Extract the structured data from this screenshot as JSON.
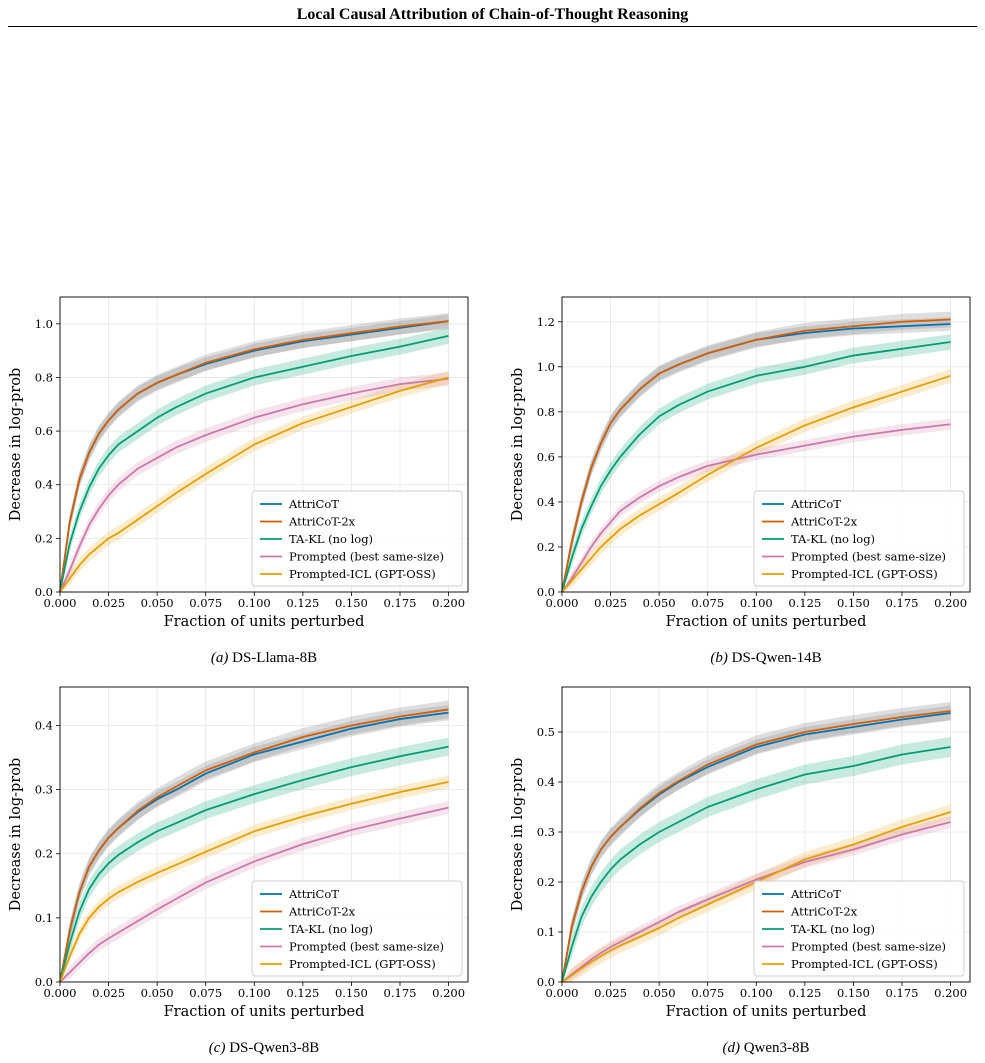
{
  "header": {
    "title": "Local Causal Attribution of Chain-of-Thought Reasoning"
  },
  "colors": {
    "AttriCoT": "#0072B2",
    "AttriCoT-2x": "#D55E00",
    "TA-KL (no log)": "#009E73",
    "Prompted (best same-size)": "#CC79A7",
    "Prompted-ICL (GPT-OSS)": "#E69F00",
    "overlap_band": "#8a8a8a"
  },
  "chart_data": [
    {
      "type": "line",
      "panel_label": "(a)",
      "caption": "DS-Llama-8B",
      "xlabel": "Fraction of units perturbed",
      "ylabel": "Decrease in log-prob",
      "xlim": [
        0,
        0.21
      ],
      "ylim": [
        0,
        1.1
      ],
      "xticks": [
        "0.000",
        "0.025",
        "0.050",
        "0.075",
        "0.100",
        "0.125",
        "0.150",
        "0.175",
        "0.200"
      ],
      "yticks": [
        "0.0",
        "0.2",
        "0.4",
        "0.6",
        "0.8",
        "1.0"
      ],
      "grid": true,
      "legend_position": "lower-right",
      "x": [
        0,
        0.005,
        0.01,
        0.015,
        0.02,
        0.025,
        0.03,
        0.04,
        0.05,
        0.06,
        0.075,
        0.1,
        0.125,
        0.15,
        0.175,
        0.2
      ],
      "series": [
        {
          "name": "AttriCoT",
          "values": [
            0,
            0.26,
            0.42,
            0.52,
            0.59,
            0.64,
            0.68,
            0.74,
            0.78,
            0.81,
            0.85,
            0.9,
            0.935,
            0.96,
            0.985,
            1.01
          ],
          "band": 0.025
        },
        {
          "name": "AttriCoT-2x",
          "values": [
            0,
            0.26,
            0.42,
            0.52,
            0.59,
            0.64,
            0.68,
            0.74,
            0.78,
            0.81,
            0.855,
            0.905,
            0.94,
            0.965,
            0.99,
            1.01
          ],
          "band": 0.03
        },
        {
          "name": "TA-KL (no log)",
          "values": [
            0,
            0.18,
            0.3,
            0.39,
            0.46,
            0.51,
            0.55,
            0.6,
            0.65,
            0.69,
            0.74,
            0.8,
            0.84,
            0.88,
            0.915,
            0.955
          ],
          "band": 0.03
        },
        {
          "name": "Prompted (best same-size)",
          "values": [
            0,
            0.08,
            0.17,
            0.25,
            0.31,
            0.36,
            0.4,
            0.46,
            0.5,
            0.54,
            0.585,
            0.65,
            0.7,
            0.74,
            0.775,
            0.795
          ],
          "band": 0.025
        },
        {
          "name": "Prompted-ICL (GPT-OSS)",
          "values": [
            0,
            0.05,
            0.1,
            0.14,
            0.17,
            0.2,
            0.22,
            0.27,
            0.32,
            0.37,
            0.44,
            0.55,
            0.63,
            0.69,
            0.75,
            0.8
          ],
          "band": 0.025
        }
      ]
    },
    {
      "type": "line",
      "panel_label": "(b)",
      "caption": "DS-Qwen-14B",
      "xlabel": "Fraction of units perturbed",
      "ylabel": "Decrease in log-prob",
      "xlim": [
        0,
        0.21
      ],
      "ylim": [
        0,
        1.31
      ],
      "xticks": [
        "0.000",
        "0.025",
        "0.050",
        "0.075",
        "0.100",
        "0.125",
        "0.150",
        "0.175",
        "0.200"
      ],
      "yticks": [
        "0.0",
        "0.2",
        "0.4",
        "0.6",
        "0.8",
        "1.0",
        "1.2"
      ],
      "grid": true,
      "legend_position": "lower-right",
      "x": [
        0,
        0.005,
        0.01,
        0.015,
        0.02,
        0.025,
        0.03,
        0.04,
        0.05,
        0.06,
        0.075,
        0.1,
        0.125,
        0.15,
        0.175,
        0.2
      ],
      "series": [
        {
          "name": "AttriCoT",
          "values": [
            0,
            0.22,
            0.4,
            0.55,
            0.66,
            0.75,
            0.81,
            0.9,
            0.97,
            1.01,
            1.06,
            1.12,
            1.15,
            1.17,
            1.18,
            1.19
          ],
          "band": 0.03
        },
        {
          "name": "AttriCoT-2x",
          "values": [
            0,
            0.22,
            0.4,
            0.55,
            0.66,
            0.75,
            0.81,
            0.9,
            0.97,
            1.01,
            1.06,
            1.12,
            1.16,
            1.18,
            1.2,
            1.21
          ],
          "band": 0.035
        },
        {
          "name": "TA-KL (no log)",
          "values": [
            0,
            0.15,
            0.28,
            0.38,
            0.47,
            0.54,
            0.6,
            0.7,
            0.78,
            0.83,
            0.89,
            0.96,
            1.0,
            1.05,
            1.08,
            1.11
          ],
          "band": 0.035
        },
        {
          "name": "Prompted (best same-size)",
          "values": [
            0,
            0.06,
            0.13,
            0.2,
            0.26,
            0.31,
            0.36,
            0.42,
            0.47,
            0.51,
            0.56,
            0.61,
            0.65,
            0.69,
            0.72,
            0.745
          ],
          "band": 0.025
        },
        {
          "name": "Prompted-ICL (GPT-OSS)",
          "values": [
            0,
            0.05,
            0.1,
            0.15,
            0.2,
            0.24,
            0.28,
            0.34,
            0.39,
            0.44,
            0.52,
            0.64,
            0.74,
            0.82,
            0.89,
            0.96
          ],
          "band": 0.03
        }
      ]
    },
    {
      "type": "line",
      "panel_label": "(c)",
      "caption": "DS-Qwen3-8B",
      "xlabel": "Fraction of units perturbed",
      "ylabel": "Decrease in log-prob",
      "xlim": [
        0,
        0.21
      ],
      "ylim": [
        0,
        0.46
      ],
      "xticks": [
        "0.000",
        "0.025",
        "0.050",
        "0.075",
        "0.100",
        "0.125",
        "0.150",
        "0.175",
        "0.200"
      ],
      "yticks": [
        "0.0",
        "0.1",
        "0.2",
        "0.3",
        "0.4"
      ],
      "grid": true,
      "legend_position": "lower-right",
      "x": [
        0,
        0.005,
        0.01,
        0.015,
        0.02,
        0.025,
        0.03,
        0.04,
        0.05,
        0.06,
        0.075,
        0.1,
        0.125,
        0.15,
        0.175,
        0.2
      ],
      "series": [
        {
          "name": "AttriCoT",
          "values": [
            0,
            0.08,
            0.14,
            0.18,
            0.205,
            0.225,
            0.24,
            0.265,
            0.285,
            0.3,
            0.325,
            0.355,
            0.375,
            0.395,
            0.41,
            0.42
          ],
          "band": 0.012
        },
        {
          "name": "AttriCoT-2x",
          "values": [
            0,
            0.08,
            0.14,
            0.18,
            0.205,
            0.225,
            0.24,
            0.267,
            0.288,
            0.305,
            0.33,
            0.358,
            0.382,
            0.4,
            0.414,
            0.425
          ],
          "band": 0.014
        },
        {
          "name": "TA-KL (no log)",
          "values": [
            0,
            0.06,
            0.11,
            0.145,
            0.168,
            0.185,
            0.198,
            0.218,
            0.235,
            0.248,
            0.268,
            0.293,
            0.315,
            0.335,
            0.352,
            0.367
          ],
          "band": 0.014
        },
        {
          "name": "Prompted (best same-size)",
          "values": [
            0,
            0.015,
            0.03,
            0.045,
            0.058,
            0.068,
            0.077,
            0.095,
            0.113,
            0.13,
            0.155,
            0.188,
            0.215,
            0.237,
            0.255,
            0.272
          ],
          "band": 0.01
        },
        {
          "name": "Prompted-ICL (GPT-OSS)",
          "values": [
            0,
            0.04,
            0.075,
            0.1,
            0.117,
            0.13,
            0.14,
            0.156,
            0.17,
            0.183,
            0.203,
            0.235,
            0.258,
            0.278,
            0.296,
            0.312
          ],
          "band": 0.01
        }
      ]
    },
    {
      "type": "line",
      "panel_label": "(d)",
      "caption": "Qwen3-8B",
      "xlabel": "Fraction of units perturbed",
      "ylabel": "Decrease in log-prob",
      "xlim": [
        0,
        0.21
      ],
      "ylim": [
        0,
        0.59
      ],
      "xticks": [
        "0.000",
        "0.025",
        "0.050",
        "0.075",
        "0.100",
        "0.125",
        "0.150",
        "0.175",
        "0.200"
      ],
      "yticks": [
        "0.0",
        "0.1",
        "0.2",
        "0.3",
        "0.4",
        "0.5"
      ],
      "grid": true,
      "legend_position": "lower-right",
      "x": [
        0,
        0.005,
        0.01,
        0.015,
        0.02,
        0.025,
        0.03,
        0.04,
        0.05,
        0.06,
        0.075,
        0.1,
        0.125,
        0.15,
        0.175,
        0.2
      ],
      "series": [
        {
          "name": "AttriCoT",
          "values": [
            0,
            0.11,
            0.18,
            0.23,
            0.265,
            0.29,
            0.31,
            0.345,
            0.375,
            0.4,
            0.43,
            0.47,
            0.495,
            0.51,
            0.525,
            0.538
          ],
          "band": 0.015
        },
        {
          "name": "AttriCoT-2x",
          "values": [
            0,
            0.11,
            0.18,
            0.23,
            0.265,
            0.29,
            0.31,
            0.347,
            0.378,
            0.402,
            0.435,
            0.475,
            0.5,
            0.516,
            0.53,
            0.542
          ],
          "band": 0.018
        },
        {
          "name": "TA-KL (no log)",
          "values": [
            0,
            0.07,
            0.13,
            0.17,
            0.2,
            0.225,
            0.245,
            0.275,
            0.3,
            0.32,
            0.35,
            0.385,
            0.415,
            0.432,
            0.455,
            0.47
          ],
          "band": 0.02
        },
        {
          "name": "Prompted (best same-size)",
          "values": [
            0,
            0.015,
            0.03,
            0.045,
            0.058,
            0.07,
            0.08,
            0.1,
            0.12,
            0.14,
            0.165,
            0.205,
            0.24,
            0.265,
            0.295,
            0.32
          ],
          "band": 0.012
        },
        {
          "name": "Prompted-ICL (GPT-OSS)",
          "values": [
            0,
            0.013,
            0.027,
            0.04,
            0.052,
            0.063,
            0.073,
            0.09,
            0.108,
            0.128,
            0.155,
            0.2,
            0.245,
            0.275,
            0.31,
            0.34
          ],
          "band": 0.015
        }
      ]
    }
  ]
}
